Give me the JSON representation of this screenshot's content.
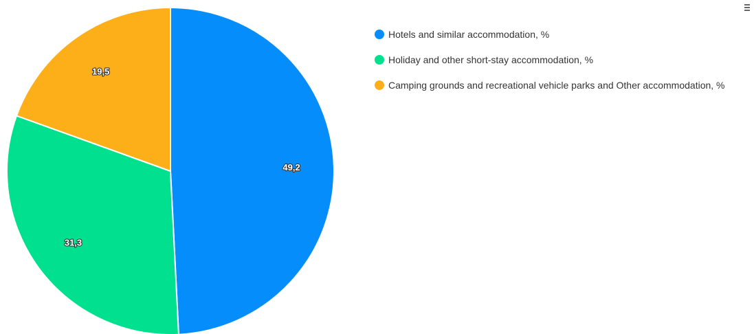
{
  "chart_data": {
    "type": "pie",
    "categories": [
      "Hotels and similar accommodation, %",
      "Holiday and other short-stay accommodation, %",
      "Camping grounds and recreational vehicle parks and Other accommodation, %"
    ],
    "values": [
      49.2,
      31.3,
      19.5
    ],
    "data_labels": [
      "49,2",
      "31,3",
      "19,5"
    ],
    "colors": [
      "#058DFC",
      "#00E08F",
      "#FDAF1A"
    ],
    "legend_position": "right",
    "start_angle": "top, clockwise"
  },
  "toolbar": {
    "menu_icon": "hamburger-menu-icon"
  }
}
